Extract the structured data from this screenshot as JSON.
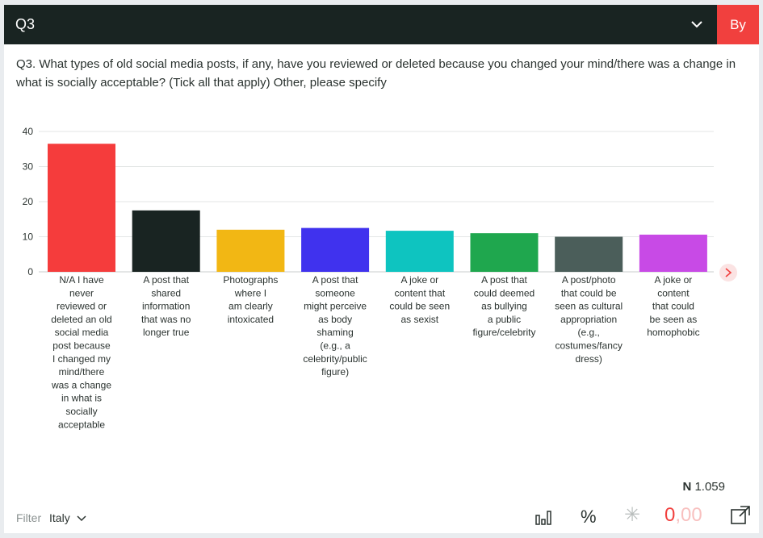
{
  "header": {
    "title": "Q3",
    "by_label": "By"
  },
  "question": "Q3. What types of old social media posts, if any, have you reviewed or deleted because you changed your mind/there was a change in what is socially acceptable? (Tick all that apply) Other, please specify",
  "footer": {
    "n_prefix": "N",
    "n_value": "1.059",
    "filter_label": "Filter",
    "filter_value": "Italy",
    "percent_symbol": "%",
    "asterisk": "✳",
    "decimals_main": "0",
    "decimals_rest": ",00"
  },
  "chart_data": {
    "type": "bar",
    "ylim": [
      0,
      40
    ],
    "yticks": [
      0,
      10,
      20,
      30,
      40
    ],
    "grid": true,
    "categories": [
      [
        "N/A I have",
        "never",
        "reviewed or",
        "deleted an old",
        "social media",
        "post because",
        "I changed my",
        "mind/there",
        "was a change",
        "in what is",
        "socially",
        "acceptable"
      ],
      [
        "A post that",
        "shared",
        "information",
        "that was no",
        "longer true"
      ],
      [
        "Photographs",
        "where I",
        "am clearly",
        "intoxicated"
      ],
      [
        "A post that",
        "someone",
        "might perceive",
        "as body",
        "shaming",
        "(e.g., a",
        "celebrity/public",
        "figure)"
      ],
      [
        "A joke or",
        "content that",
        "could be seen",
        "as sexist"
      ],
      [
        "A post that",
        "could deemed",
        "as bullying",
        "a public",
        "figure/celebrity"
      ],
      [
        "A post/photo",
        "that could be",
        "seen as cultural",
        "appropriation",
        "(e.g.,",
        "costumes/fancy",
        "dress)"
      ],
      [
        "A joke or",
        "content",
        "that could",
        "be seen as",
        "homophobic"
      ]
    ],
    "values": [
      36.5,
      17.5,
      12,
      12.5,
      11.7,
      11,
      10,
      10.6
    ],
    "colors": [
      "#f53c3c",
      "#192422",
      "#f2b714",
      "#4032ee",
      "#0ec4c0",
      "#1fa74e",
      "#4b5e5a",
      "#c84ae6"
    ]
  }
}
